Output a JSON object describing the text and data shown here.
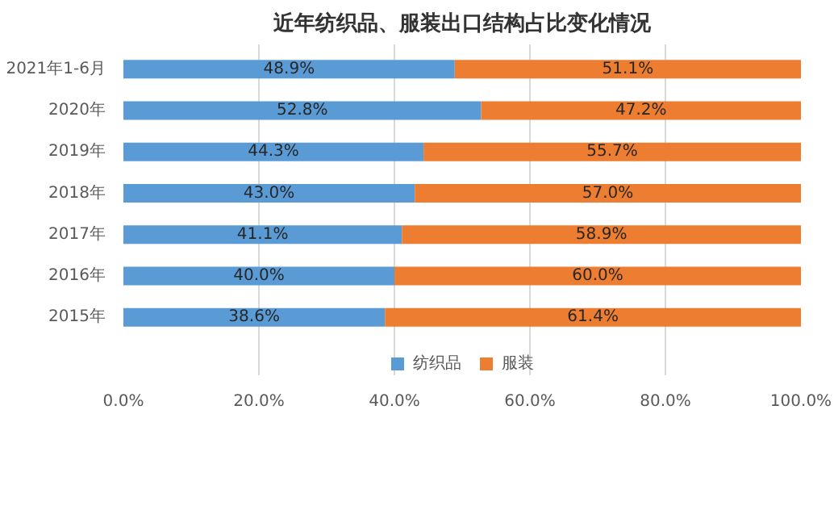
{
  "chart_data": {
    "type": "bar",
    "orientation": "horizontal",
    "stacked": true,
    "title": "近年纺织品、服装出口结构占比变化情况",
    "categories": [
      "2021年1-6月",
      "2020年",
      "2019年",
      "2018年",
      "2017年",
      "2016年",
      "2015年"
    ],
    "series": [
      {
        "name": "纺织品",
        "color": "#5b9bd5",
        "values": [
          48.9,
          52.8,
          44.3,
          43.0,
          41.1,
          40.0,
          38.6
        ],
        "value_labels": [
          "48.9%",
          "52.8%",
          "44.3%",
          "43.0%",
          "41.1%",
          "40.0%",
          "38.6%"
        ]
      },
      {
        "name": "服装",
        "color": "#ed7d31",
        "values": [
          51.1,
          47.2,
          55.7,
          57.0,
          58.9,
          60.0,
          61.4
        ],
        "value_labels": [
          "51.1%",
          "47.2%",
          "55.7%",
          "57.0%",
          "58.9%",
          "60.0%",
          "61.4%"
        ]
      }
    ],
    "xlim": [
      0,
      100
    ],
    "xticks": [
      {
        "value": 0,
        "label": "0.0%"
      },
      {
        "value": 20,
        "label": "20.0%"
      },
      {
        "value": 40,
        "label": "40.0%"
      },
      {
        "value": 60,
        "label": "60.0%"
      },
      {
        "value": 80,
        "label": "80.0%"
      },
      {
        "value": 100,
        "label": "100.0%"
      }
    ],
    "grid": "x",
    "legend": "bottom"
  }
}
